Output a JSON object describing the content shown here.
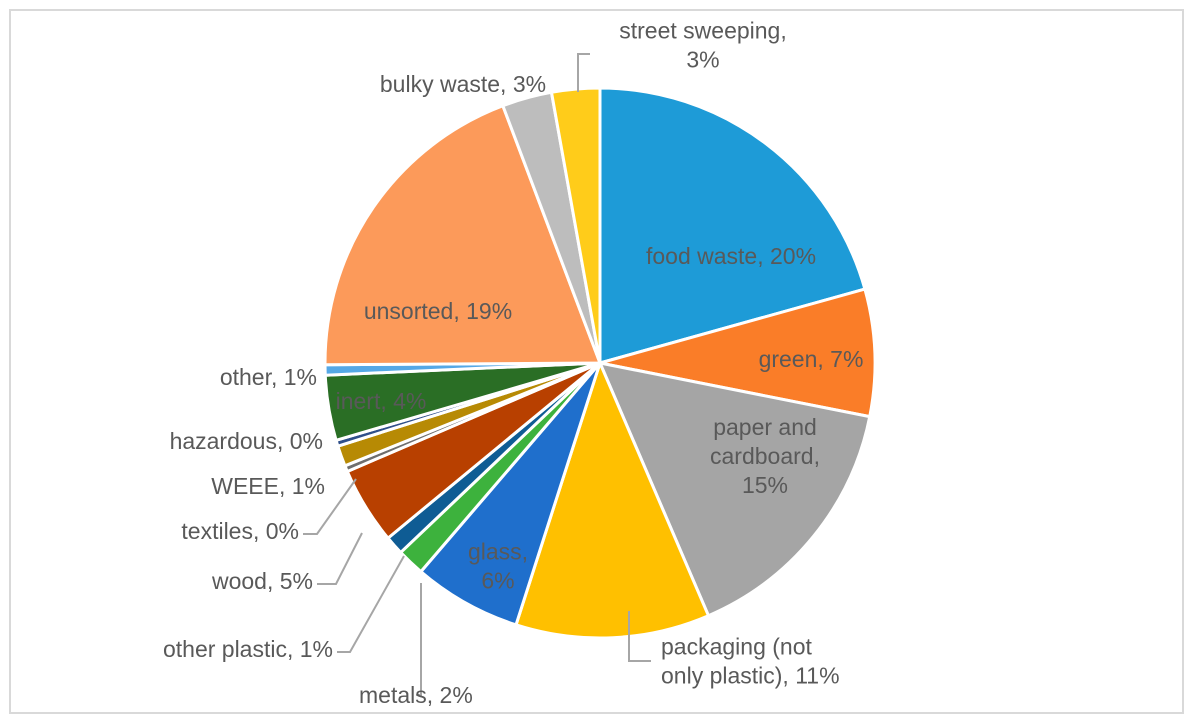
{
  "chart_data": {
    "type": "pie",
    "title": "",
    "legend": "none",
    "slices": [
      {
        "name": "food waste",
        "label": [
          "food waste, 20%"
        ],
        "value": 20.5,
        "color": "#1e9bd7"
      },
      {
        "name": "green",
        "label": [
          "green, 7%"
        ],
        "value": 7.4,
        "color": "#fa7d28"
      },
      {
        "name": "paper and cardboard",
        "label": [
          "paper and",
          "cardboard,",
          "15%"
        ],
        "value": 15.3,
        "color": "#a5a5a5"
      },
      {
        "name": "packaging (not only plastic)",
        "label": [
          "packaging (not",
          "only plastic), 11%"
        ],
        "value": 11.3,
        "color": "#ffc000"
      },
      {
        "name": "glass",
        "label": [
          "glass,",
          "6%"
        ],
        "value": 6.3,
        "color": "#1f6fcc"
      },
      {
        "name": "metals",
        "label": [
          "metals, 2%"
        ],
        "value": 1.6,
        "color": "#3db23d"
      },
      {
        "name": "other plastic",
        "label": [
          "other plastic, 1%"
        ],
        "value": 1.1,
        "color": "#0f5c94"
      },
      {
        "name": "wood",
        "label": [
          "wood, 5%"
        ],
        "value": 4.5,
        "color": "#b84000"
      },
      {
        "name": "textiles",
        "label": [
          "textiles, 0%"
        ],
        "value": 0.35,
        "color": "#6e6e6e"
      },
      {
        "name": "WEEE",
        "label": [
          "WEEE, 1%"
        ],
        "value": 1.2,
        "color": "#b78a04"
      },
      {
        "name": "hazardous",
        "label": [
          "hazardous, 0%"
        ],
        "value": 0.35,
        "color": "#2f4f8a"
      },
      {
        "name": "inert",
        "label": [
          "inert, 4%"
        ],
        "value": 3.8,
        "color": "#2a6e25"
      },
      {
        "name": "other",
        "label": [
          "other, 1%"
        ],
        "value": 0.6,
        "color": "#55a8e6"
      },
      {
        "name": "unsorted",
        "label": [
          "unsorted, 19%"
        ],
        "value": 19.2,
        "color": "#fc9a5a"
      },
      {
        "name": "bulky waste",
        "label": [
          "bulky waste, 3%"
        ],
        "value": 2.9,
        "color": "#bdbdbd"
      },
      {
        "name": "street sweeping",
        "label": [
          "street sweeping,",
          "3%"
        ],
        "value": 2.8,
        "color": "#ffcc1a"
      }
    ]
  }
}
